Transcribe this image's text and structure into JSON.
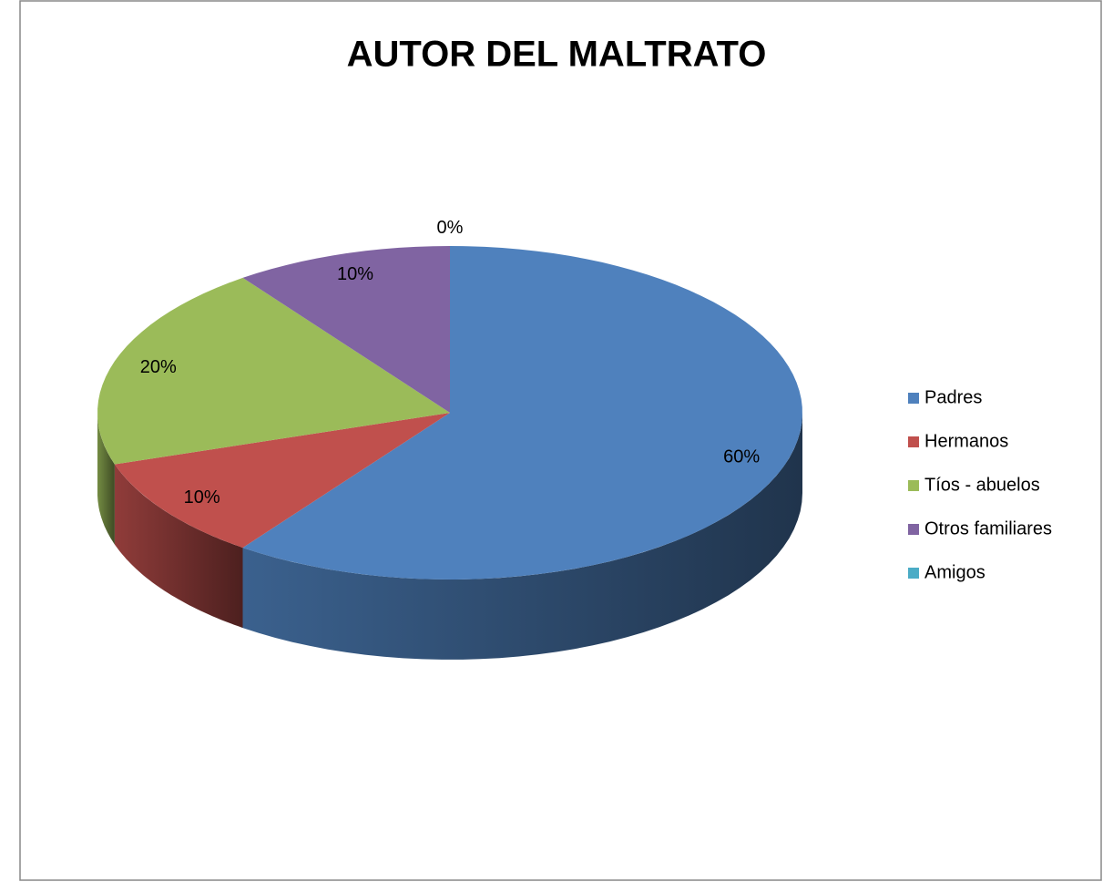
{
  "chart_data": {
    "type": "pie3d",
    "title": "AUTOR DEL MALTRATO",
    "categories": [
      "Padres",
      "Hermanos",
      "Tíos - abuelos",
      "Otros familiares",
      "Amigos"
    ],
    "values": [
      60,
      10,
      20,
      10,
      0
    ],
    "value_labels": [
      "60%",
      "10%",
      "20%",
      "10%",
      "0%"
    ],
    "colors": [
      "#4f81bd",
      "#c0504d",
      "#9bbb59",
      "#8064a2",
      "#4bacc6"
    ],
    "legend": "right"
  }
}
